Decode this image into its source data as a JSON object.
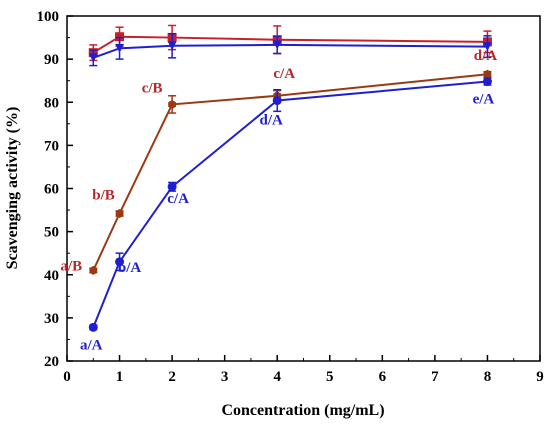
{
  "chart_data": {
    "type": "line",
    "xlabel": "Concentration (mg/mL)",
    "ylabel": "Scavenging activity (%)",
    "xlim": [
      0,
      9
    ],
    "ylim": [
      20,
      100
    ],
    "xticks": [
      0,
      1,
      2,
      3,
      4,
      5,
      6,
      7,
      8,
      9
    ],
    "yticks": [
      20,
      30,
      40,
      50,
      60,
      70,
      80,
      90,
      100
    ],
    "grid": false,
    "legend": "none",
    "series": [
      {
        "color": "#c8202a",
        "marker": "square",
        "x": [
          0.5,
          1,
          2,
          4,
          8
        ],
        "y": [
          91.5,
          95.2,
          95.0,
          94.5,
          94.0
        ],
        "err": [
          1.8,
          2.2,
          2.8,
          3.2,
          2.5
        ]
      },
      {
        "color": "#1f1fd0",
        "marker": "triangle",
        "x": [
          0.5,
          1,
          2,
          4,
          8
        ],
        "y": [
          90.3,
          92.5,
          93.1,
          93.3,
          92.9
        ],
        "err": [
          1.8,
          2.5,
          2.8,
          2.0,
          2.5
        ]
      },
      {
        "color": "#9b3a12",
        "marker": "hexagon",
        "x": [
          0.5,
          1,
          2,
          4,
          8
        ],
        "y": [
          41.0,
          54.2,
          79.5,
          81.5,
          86.5
        ],
        "err": [
          0.5,
          0.6,
          2.0,
          1.2,
          0.6
        ],
        "labels": [
          "a/B",
          "b/B",
          "c/B",
          "c/A",
          "d/A"
        ],
        "label_color": "#b5282a"
      },
      {
        "color": "#1f1fd0",
        "marker": "circle",
        "x": [
          0.5,
          1,
          2,
          4,
          8
        ],
        "y": [
          27.8,
          43.0,
          60.4,
          80.4,
          84.8
        ],
        "err": [
          0.5,
          2.0,
          1.0,
          2.5,
          0.8
        ],
        "labels": [
          "a/A",
          "b/A",
          "c/A",
          "d/A",
          "e/A"
        ],
        "label_color": "#1f1fd0"
      }
    ]
  }
}
